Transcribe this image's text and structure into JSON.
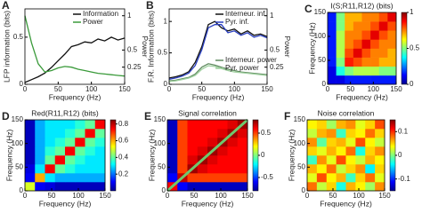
{
  "chart_data": [
    {
      "type": "line",
      "label": "A",
      "ylabel": "LFP information (bits)",
      "y2label": "Power",
      "xlabel": "Frequency (Hz)",
      "x": [
        0,
        10,
        20,
        30,
        40,
        50,
        60,
        70,
        80,
        90,
        100,
        110,
        120,
        130,
        140,
        150
      ],
      "xlim": [
        0,
        150
      ],
      "xticks": [
        0,
        50,
        100,
        150
      ],
      "ylim": [
        0,
        0.8
      ],
      "yticks": [
        0,
        0.5
      ],
      "y2lim": [
        0,
        1.1
      ],
      "y2ticks": [
        0.25,
        0.5,
        1
      ],
      "series": [
        {
          "name": "Information",
          "color": "#111111",
          "values": [
            0.02,
            0.05,
            0.08,
            0.12,
            0.18,
            0.25,
            0.32,
            0.4,
            0.42,
            0.45,
            0.44,
            0.48,
            0.46,
            0.5,
            0.47,
            0.49
          ]
        },
        {
          "name": "Power",
          "color": "#3a9a3a",
          "axis": "y2",
          "values": [
            1.0,
            0.6,
            0.3,
            0.18,
            0.2,
            0.24,
            0.26,
            0.25,
            0.22,
            0.2,
            0.18,
            0.16,
            0.15,
            0.14,
            0.13,
            0.12
          ]
        }
      ]
    },
    {
      "type": "line",
      "label": "B",
      "ylabel": "F.R. Information (bits)",
      "y2label": "Power",
      "xlabel": "Frequency (Hz)",
      "x": [
        0,
        10,
        20,
        30,
        40,
        50,
        60,
        70,
        80,
        90,
        100,
        110,
        120,
        130,
        140,
        150
      ],
      "xlim": [
        0,
        150
      ],
      "xticks": [
        0,
        50,
        100,
        150
      ],
      "ylim": [
        0,
        1.2
      ],
      "yticks": [
        0,
        0.5,
        1
      ],
      "y2lim": [
        0,
        1.1
      ],
      "y2ticks": [
        0.25,
        0.5,
        1
      ],
      "series": [
        {
          "name": "Interneur. inf.",
          "color": "#111111",
          "values": [
            0.1,
            0.12,
            0.15,
            0.2,
            0.35,
            0.6,
            0.95,
            1.0,
            0.9,
            0.85,
            0.88,
            0.8,
            0.85,
            0.78,
            0.8,
            0.76
          ]
        },
        {
          "name": "Pyr. inf.",
          "color": "#2a3fc0",
          "values": [
            0.08,
            0.1,
            0.13,
            0.18,
            0.3,
            0.55,
            0.9,
            0.95,
            0.95,
            0.82,
            0.85,
            0.78,
            0.82,
            0.75,
            0.78,
            0.74
          ]
        },
        {
          "name": "Interneur. power",
          "color": "#5f8a5f",
          "axis": "y2",
          "values": [
            0.05,
            0.06,
            0.08,
            0.1,
            0.15,
            0.25,
            0.3,
            0.28,
            0.25,
            0.22,
            0.2,
            0.18,
            0.17,
            0.16,
            0.15,
            0.14
          ]
        },
        {
          "name": "Pyr. power",
          "color": "#9fd09f",
          "axis": "y2",
          "values": [
            0.04,
            0.05,
            0.07,
            0.09,
            0.13,
            0.22,
            0.27,
            0.26,
            0.23,
            0.2,
            0.18,
            0.17,
            0.16,
            0.15,
            0.14,
            0.13
          ]
        }
      ]
    },
    {
      "type": "heatmap",
      "label": "C",
      "title": "I(S;R11,R12) (bits)",
      "xlabel": "Frequency (Hz)",
      "ylabel": "Frequency (Hz)",
      "xlim": [
        0,
        150
      ],
      "xticks": [
        0,
        50,
        100,
        150
      ],
      "ylim": [
        0,
        150
      ],
      "yticks": [
        0,
        50,
        100,
        150
      ],
      "zlim": [
        0,
        1
      ],
      "zticks": [
        0,
        0.5,
        1
      ],
      "values": [
        [
          0.1,
          0.1,
          0.15,
          0.15,
          0.15,
          0.15,
          0.15,
          0.15
        ],
        [
          0.1,
          0.4,
          0.5,
          0.55,
          0.55,
          0.55,
          0.5,
          0.5
        ],
        [
          0.15,
          0.5,
          0.85,
          0.8,
          0.75,
          0.75,
          0.7,
          0.7
        ],
        [
          0.15,
          0.55,
          0.8,
          0.9,
          0.8,
          0.75,
          0.75,
          0.7
        ],
        [
          0.15,
          0.55,
          0.75,
          0.8,
          0.9,
          0.8,
          0.75,
          0.75
        ],
        [
          0.15,
          0.55,
          0.75,
          0.75,
          0.8,
          0.9,
          0.8,
          0.75
        ],
        [
          0.15,
          0.5,
          0.7,
          0.75,
          0.75,
          0.8,
          0.9,
          0.8
        ],
        [
          0.15,
          0.5,
          0.7,
          0.7,
          0.75,
          0.75,
          0.8,
          0.9
        ]
      ]
    },
    {
      "type": "heatmap",
      "label": "D",
      "title": "Red(R11,R12) (bits)",
      "xlabel": "Frequency (Hz)",
      "ylabel": "Frequency (Hz)",
      "xlim": [
        0,
        150
      ],
      "xticks": [
        0,
        50,
        100,
        150
      ],
      "ylim": [
        0,
        150
      ],
      "yticks": [
        0,
        50,
        100,
        150
      ],
      "zlim": [
        0,
        0.85
      ],
      "zticks": [
        0.2,
        0.4,
        0.6,
        0.8
      ],
      "values": [
        [
          0.5,
          0.1,
          0.08,
          0.05,
          0.05,
          0.05,
          0.05,
          0.05
        ],
        [
          0.1,
          0.6,
          0.3,
          0.25,
          0.25,
          0.25,
          0.25,
          0.25
        ],
        [
          0.08,
          0.3,
          0.75,
          0.4,
          0.35,
          0.3,
          0.3,
          0.3
        ],
        [
          0.05,
          0.25,
          0.4,
          0.75,
          0.4,
          0.35,
          0.3,
          0.3
        ],
        [
          0.05,
          0.25,
          0.35,
          0.4,
          0.75,
          0.4,
          0.35,
          0.3
        ],
        [
          0.05,
          0.25,
          0.3,
          0.35,
          0.4,
          0.75,
          0.4,
          0.35
        ],
        [
          0.05,
          0.25,
          0.3,
          0.3,
          0.35,
          0.4,
          0.75,
          0.4
        ],
        [
          0.05,
          0.25,
          0.3,
          0.3,
          0.3,
          0.35,
          0.4,
          0.75
        ]
      ]
    },
    {
      "type": "heatmap",
      "label": "E",
      "title": "Signal correlation",
      "xlabel": "Frequency (Hz)",
      "ylabel": "Frequency (Hz)",
      "xlim": [
        0,
        150
      ],
      "xticks": [
        0,
        50,
        100,
        150
      ],
      "ylim": [
        0,
        150
      ],
      "yticks": [
        0,
        50,
        100,
        150
      ],
      "zlim": [
        -0.8,
        0.8
      ],
      "zticks": [
        -0.5,
        0,
        0.5
      ],
      "values": [
        [
          0.6,
          -0.6,
          -0.7,
          -0.7,
          -0.7,
          -0.7,
          -0.7,
          -0.7
        ],
        [
          -0.6,
          0.7,
          0.5,
          0.5,
          0.5,
          0.5,
          0.5,
          0.5
        ],
        [
          -0.7,
          0.5,
          0.75,
          0.65,
          0.6,
          0.6,
          0.6,
          0.6
        ],
        [
          -0.7,
          0.5,
          0.65,
          0.75,
          0.65,
          0.6,
          0.6,
          0.6
        ],
        [
          -0.7,
          0.5,
          0.6,
          0.65,
          0.75,
          0.65,
          0.6,
          0.6
        ],
        [
          -0.7,
          0.5,
          0.6,
          0.6,
          0.65,
          0.75,
          0.65,
          0.6
        ],
        [
          -0.7,
          0.5,
          0.6,
          0.6,
          0.6,
          0.65,
          0.75,
          0.65
        ],
        [
          -0.7,
          0.5,
          0.6,
          0.6,
          0.6,
          0.6,
          0.65,
          0.75
        ]
      ]
    },
    {
      "type": "heatmap",
      "label": "F",
      "title": "Noise correlation",
      "xlabel": "Frequency (Hz)",
      "ylabel": "Frequency (Hz)",
      "xlim": [
        0,
        150
      ],
      "xticks": [
        0,
        50,
        100,
        150
      ],
      "ylim": [
        0,
        150
      ],
      "yticks": [
        0,
        50,
        100,
        150
      ],
      "zlim": [
        -0.15,
        0.15
      ],
      "zticks": [
        -0.1,
        0,
        0.1
      ],
      "values": [
        [
          0.08,
          0.02,
          0.05,
          -0.03,
          0.06,
          0.04,
          0.01,
          0.07
        ],
        [
          0.03,
          0.09,
          0.04,
          0.06,
          -0.02,
          0.05,
          0.08,
          0.03
        ],
        [
          0.06,
          0.04,
          0.08,
          0.02,
          0.05,
          0.07,
          -0.04,
          0.05
        ],
        [
          -0.02,
          0.07,
          0.03,
          0.09,
          0.04,
          0.02,
          0.06,
          0.04
        ],
        [
          0.05,
          0.03,
          0.06,
          0.04,
          0.08,
          -0.03,
          0.05,
          0.07
        ],
        [
          0.07,
          -0.01,
          0.05,
          0.06,
          0.03,
          0.09,
          0.04,
          0.02
        ],
        [
          0.02,
          0.06,
          0.07,
          -0.02,
          0.05,
          0.04,
          0.08,
          0.05
        ],
        [
          0.04,
          0.05,
          0.01,
          0.06,
          0.07,
          0.03,
          0.05,
          0.09
        ]
      ]
    }
  ]
}
